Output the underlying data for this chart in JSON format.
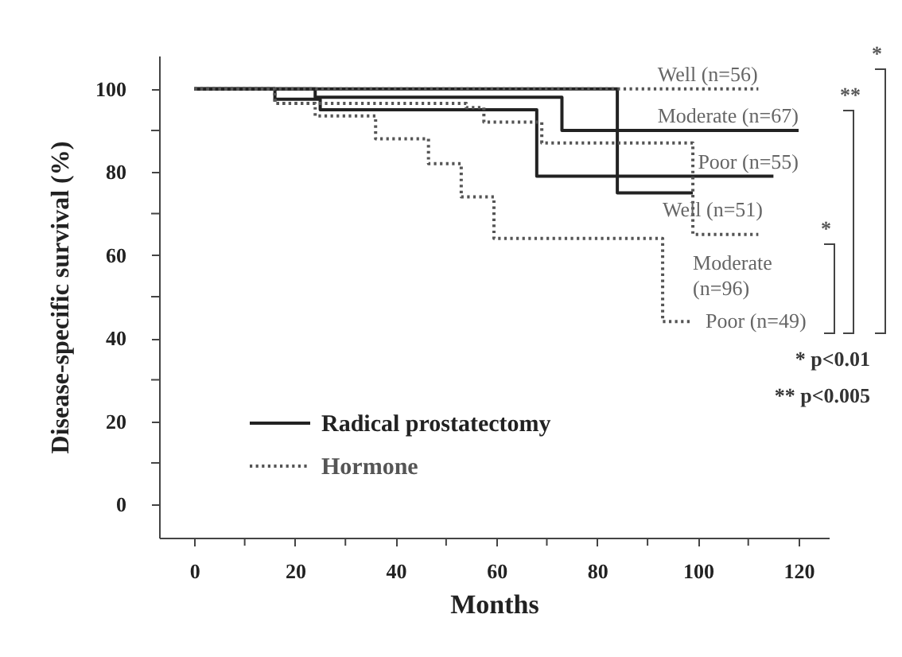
{
  "chart_data": {
    "type": "step",
    "xlabel": "Months",
    "ylabel": "Disease-specific survival (%)",
    "xlim": [
      -7,
      126
    ],
    "ylim": [
      -8,
      108
    ],
    "xticks": [
      0,
      {
        "value": 10,
        "label": null
      },
      20,
      {
        "value": 30,
        "label": null
      },
      40,
      {
        "value": 50,
        "label": null
      },
      60,
      {
        "value": 70,
        "label": null
      },
      80,
      {
        "value": 90,
        "label": null
      },
      100,
      {
        "value": 110,
        "label": null
      },
      120
    ],
    "yticks": [
      0,
      {
        "value": 10,
        "label": null
      },
      20,
      {
        "value": 30,
        "label": null
      },
      40,
      {
        "value": 50,
        "label": null
      },
      60,
      {
        "value": 70,
        "label": null
      },
      80,
      {
        "value": 90,
        "label": null
      },
      100
    ],
    "grid": false,
    "legend": "bottom left",
    "series": [
      {
        "name": "Radical prostatectomy",
        "color": "#222222",
        "line_style": "solid",
        "x": [
          0,
          84,
          99
        ],
        "values": [
          100,
          75,
          75
        ]
      },
      {
        "color": "#222222",
        "line_style": "solid",
        "x": [
          0,
          24,
          73,
          120
        ],
        "values": [
          100,
          98,
          90,
          90
        ]
      },
      {
        "color": "#222222",
        "line_style": "solid",
        "x": [
          0,
          16,
          25,
          68,
          115
        ],
        "values": [
          100,
          97.5,
          95,
          79,
          79
        ]
      },
      {
        "name": "Hormone",
        "color": "#555555",
        "line_style": "dotted",
        "x": [
          0,
          112
        ],
        "values": [
          100,
          100
        ]
      },
      {
        "color": "#555555",
        "line_style": "dotted",
        "x": [
          0,
          16,
          54,
          57.5,
          69,
          99,
          112
        ],
        "values": [
          100,
          96.5,
          95.5,
          92,
          87,
          65,
          65
        ]
      },
      {
        "color": "#555555",
        "line_style": "dotted",
        "x": [
          0,
          16,
          24,
          36,
          46.5,
          53,
          59.5,
          93,
          99
        ],
        "values": [
          100,
          96.5,
          93.5,
          88,
          82,
          74,
          64,
          44,
          44
        ]
      }
    ],
    "annotations": [
      {
        "text": "Well (n=56)",
        "x": 92,
        "y": 100
      },
      {
        "text": "Moderate (n=67)",
        "x": 92,
        "y": 90
      },
      {
        "text": "Poor (n=55)",
        "x": 100,
        "y": 79
      },
      {
        "text": "Well (n=51)",
        "x": 93,
        "y": 75
      },
      {
        "text": "Moderate (n=96)",
        "x": 99,
        "y": 65
      },
      {
        "text": "Poor (n=49)",
        "x": 99,
        "y": 44
      },
      "*",
      "**",
      "*",
      "* p<0.01",
      "** p<0.005"
    ]
  }
}
